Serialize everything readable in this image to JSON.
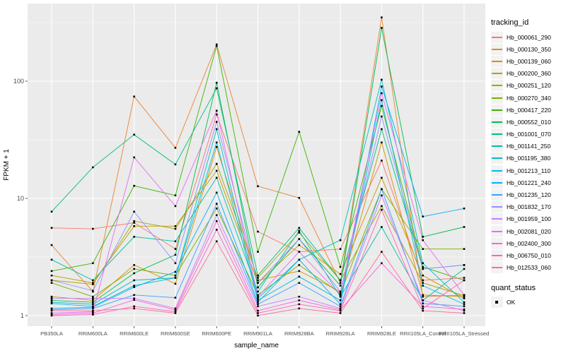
{
  "figure": {
    "panel_bg": "#EBEBEB",
    "grid_color": "#FFFFFF",
    "key_bg": "#F2F2F2",
    "point_color": "#000000",
    "tick_label_color": "#4D4D4D",
    "title_color": "#000000"
  },
  "legend": {
    "tracking_title": "tracking_id",
    "quant_title": "quant_status",
    "quant_items": [
      {
        "label": "OK",
        "swatch": "black-square-point"
      }
    ]
  },
  "axes": {
    "x_title": "sample_name",
    "y_title": "FPKM + 1",
    "y_tick_labels": [
      "1",
      "10",
      "100"
    ]
  },
  "chart_data": {
    "type": "line",
    "title": "",
    "xlabel": "sample_name",
    "ylabel": "FPKM + 1",
    "y_scale": "log10",
    "ylim": [
      1,
      450
    ],
    "y_major_ticks": [
      1,
      10,
      100
    ],
    "y_minor_ticks": [
      3.162,
      31.62,
      316.2
    ],
    "grid": true,
    "legend_position": "right",
    "point_shape": "small-black-square",
    "categories": [
      "PB350LA",
      "RRIM600LA",
      "RRIM600LE",
      "RRIM600SE",
      "RRIM600PE",
      "RRIM901LA",
      "RRIM928BA",
      "RRIM928LA",
      "RRIM928LE",
      "RRII105LA_Control",
      "RRII105LA_Stressed"
    ],
    "series": [
      {
        "name": "Hb_000061_290",
        "color": "#F8766D",
        "values": [
          5.6,
          5.5,
          6.2,
          3.7,
          52,
          5.2,
          3.5,
          3.7,
          21,
          2.0,
          2.1
        ]
      },
      {
        "name": "Hb_000130_350",
        "color": "#EA8331",
        "values": [
          4.0,
          1.6,
          74,
          27,
          206,
          12.7,
          10.1,
          1.9,
          350,
          1.45,
          1.5
        ]
      },
      {
        "name": "Hb_000139_060",
        "color": "#D89000",
        "values": [
          1.45,
          1.35,
          2.7,
          1.87,
          27.5,
          2.0,
          2.4,
          1.6,
          30,
          1.5,
          1.45
        ]
      },
      {
        "name": "Hb_000200_360",
        "color": "#C09B00",
        "values": [
          2.2,
          1.9,
          5.8,
          5.8,
          17.2,
          1.9,
          4.0,
          2.26,
          15,
          2.2,
          1.4
        ]
      },
      {
        "name": "Hb_000251_120",
        "color": "#A3A500",
        "values": [
          2.0,
          1.85,
          6.4,
          5.5,
          19.7,
          2.1,
          5.1,
          2.0,
          8.6,
          1.9,
          1.48
        ]
      },
      {
        "name": "Hb_000270_340",
        "color": "#7CAE00",
        "values": [
          1.9,
          1.45,
          2.5,
          2.2,
          8.2,
          1.5,
          2.7,
          1.55,
          12,
          3.7,
          3.7
        ]
      },
      {
        "name": "Hb_000417_220",
        "color": "#39B600",
        "values": [
          2.4,
          2.8,
          12.8,
          10.6,
          200,
          3.5,
          37,
          2.6,
          61.5,
          2.6,
          2.0
        ]
      },
      {
        "name": "Hb_000552_010",
        "color": "#00BB4E",
        "values": [
          1.35,
          1.3,
          2.3,
          3.3,
          97,
          1.74,
          4.5,
          1.8,
          285,
          4.7,
          5.7
        ]
      },
      {
        "name": "Hb_001001_070",
        "color": "#00BF7D",
        "values": [
          7.7,
          18.4,
          35,
          19.5,
          87,
          2.2,
          5.6,
          2.0,
          39,
          2.5,
          2.7
        ]
      },
      {
        "name": "Hb_001141_250",
        "color": "#00C1A3",
        "values": [
          3.0,
          2.0,
          4.7,
          4.3,
          15,
          1.6,
          5.3,
          1.45,
          5.7,
          1.35,
          2.5
        ]
      },
      {
        "name": "Hb_001195_380",
        "color": "#00BFC4",
        "values": [
          1.3,
          1.25,
          2.0,
          2.1,
          39,
          1.4,
          3.0,
          4.4,
          103,
          2.8,
          1.3
        ]
      },
      {
        "name": "Hb_001213_110",
        "color": "#00BAE0",
        "values": [
          1.27,
          1.2,
          1.8,
          2.1,
          30,
          1.35,
          2.15,
          1.35,
          69,
          1.8,
          1.25
        ]
      },
      {
        "name": "Hb_001221_240",
        "color": "#00B0F6",
        "values": [
          1.15,
          1.18,
          1.75,
          2.36,
          11.2,
          1.3,
          3.0,
          1.25,
          90,
          7.0,
          8.2
        ]
      },
      {
        "name": "Hb_001235_120",
        "color": "#35A2FF",
        "values": [
          1.12,
          1.15,
          1.5,
          1.42,
          9.0,
          1.25,
          1.9,
          1.2,
          12,
          1.27,
          1.2
        ]
      },
      {
        "name": "Hb_001832_170",
        "color": "#9590FF",
        "values": [
          2.0,
          1.63,
          7.7,
          2.8,
          45,
          1.9,
          4.5,
          1.6,
          50,
          2.5,
          2.7
        ]
      },
      {
        "name": "Hb_001959_100",
        "color": "#C77CFF",
        "values": [
          1.4,
          1.4,
          1.4,
          1.15,
          7.2,
          1.2,
          1.45,
          1.15,
          10.6,
          1.35,
          1.1
        ]
      },
      {
        "name": "Hb_002081_020",
        "color": "#E76BF3",
        "values": [
          1.05,
          1.08,
          22.4,
          8.6,
          56,
          1.45,
          3.5,
          1.5,
          79,
          4.4,
          1.5
        ]
      },
      {
        "name": "Hb_002400_300",
        "color": "#FA62DB",
        "values": [
          1.02,
          1.05,
          1.36,
          1.12,
          6.4,
          1.1,
          1.35,
          1.12,
          2.8,
          1.2,
          1.13
        ]
      },
      {
        "name": "Hb_006750_010",
        "color": "#FF62BC",
        "values": [
          1.0,
          1.02,
          1.2,
          1.08,
          5.4,
          1.05,
          1.25,
          1.1,
          8.0,
          1.15,
          2.0
        ]
      },
      {
        "name": "Hb_012533_060",
        "color": "#FF6A98",
        "values": [
          1.1,
          1.1,
          1.15,
          1.05,
          4.3,
          1.0,
          1.15,
          1.05,
          3.5,
          1.1,
          1.05
        ]
      }
    ]
  }
}
